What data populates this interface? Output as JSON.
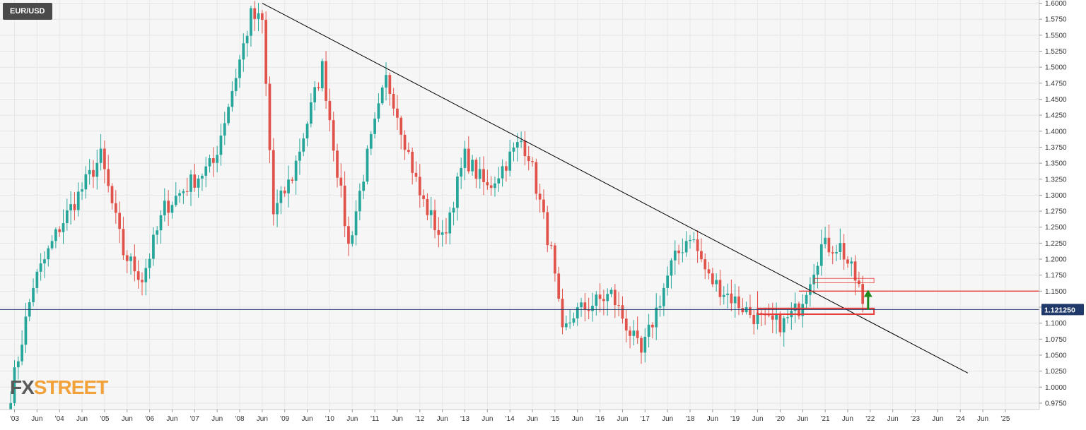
{
  "symbol": "EUR/USD",
  "watermark": {
    "part1": "FX",
    "part2": "STREET"
  },
  "colors": {
    "up": "#26a69a",
    "down": "#e0524a",
    "trendline": "#000000",
    "current_line": "#1f3a6a",
    "zone": "#e53935",
    "arrow": "#1f8a1f",
    "price_tag_bg": "#1f3a6a"
  },
  "chart_data": {
    "type": "candlestick",
    "title": "EUR/USD",
    "timeframe": "monthly",
    "y_ticks": [
      "1.6000",
      "1.5750",
      "1.5500",
      "1.5250",
      "1.5000",
      "1.4750",
      "1.4500",
      "1.4250",
      "1.4000",
      "1.3750",
      "1.3500",
      "1.3250",
      "1.3000",
      "1.2750",
      "1.2500",
      "1.2250",
      "1.2000",
      "1.1750",
      "1.1500",
      "1.1250",
      "1.1000",
      "1.0750",
      "1.0500",
      "1.0250",
      "1.0000",
      "0.9750"
    ],
    "x_ticks": [
      "'03",
      "Jun",
      "'04",
      "Jun",
      "'05",
      "Jun",
      "'06",
      "Jun",
      "'07",
      "Jun",
      "'08",
      "Jun",
      "'09",
      "Jun",
      "'10",
      "Jun",
      "'11",
      "Jun",
      "'12",
      "Jun",
      "'13",
      "Jun",
      "'14",
      "Jun",
      "'15",
      "Jun",
      "'16",
      "Jun",
      "'17",
      "Jun",
      "'18",
      "Jun",
      "'19",
      "Jun",
      "'20",
      "Jun",
      "'21",
      "Jun",
      "'22",
      "Jun",
      "'23",
      "Jun",
      "'24",
      "Jun",
      "'25"
    ],
    "ylim": [
      0.965,
      1.605
    ],
    "current_price": 1.12125,
    "current_price_label": "1.121250",
    "trendline": {
      "start": [
        "2008-07",
        1.6
      ],
      "end": [
        "2024-03",
        1.022
      ]
    },
    "resistance_level": 1.15,
    "zones": [
      {
        "from": "2020-10",
        "to": "2022-02",
        "low": 1.163,
        "high": 1.17,
        "style": "thin"
      },
      {
        "from": "2019-07",
        "to": "2022-02",
        "low": 1.114,
        "high": 1.123,
        "style": "thick"
      }
    ],
    "anchor_candles": [
      [
        "2002-12",
        0.99
      ],
      [
        "2003-06",
        1.16
      ],
      [
        "2004-01",
        1.25
      ],
      [
        "2004-12",
        1.36
      ],
      [
        "2005-06",
        1.21
      ],
      [
        "2005-11",
        1.17
      ],
      [
        "2006-05",
        1.28
      ],
      [
        "2006-12",
        1.32
      ],
      [
        "2007-06",
        1.35
      ],
      [
        "2008-04",
        1.58
      ],
      [
        "2008-07",
        1.57
      ],
      [
        "2008-10",
        1.27
      ],
      [
        "2009-03",
        1.33
      ],
      [
        "2009-11",
        1.5
      ],
      [
        "2010-06",
        1.22
      ],
      [
        "2010-11",
        1.36
      ],
      [
        "2011-04",
        1.48
      ],
      [
        "2011-06",
        1.45
      ],
      [
        "2012-01",
        1.3
      ],
      [
        "2012-07",
        1.23
      ],
      [
        "2013-01",
        1.36
      ],
      [
        "2013-07",
        1.31
      ],
      [
        "2014-04",
        1.385
      ],
      [
        "2014-06",
        1.365
      ],
      [
        "2014-12",
        1.21
      ],
      [
        "2015-03",
        1.08
      ],
      [
        "2015-06",
        1.115
      ],
      [
        "2016-04",
        1.145
      ],
      [
        "2016-12",
        1.05
      ],
      [
        "2017-08",
        1.19
      ],
      [
        "2018-01",
        1.24
      ],
      [
        "2018-06",
        1.17
      ],
      [
        "2019-05",
        1.115
      ],
      [
        "2019-09",
        1.1
      ],
      [
        "2020-02",
        1.1
      ],
      [
        "2020-06",
        1.125
      ],
      [
        "2020-12",
        1.22
      ],
      [
        "2021-05",
        1.22
      ],
      [
        "2021-10",
        1.156
      ],
      [
        "2021-11",
        1.13
      ]
    ]
  }
}
